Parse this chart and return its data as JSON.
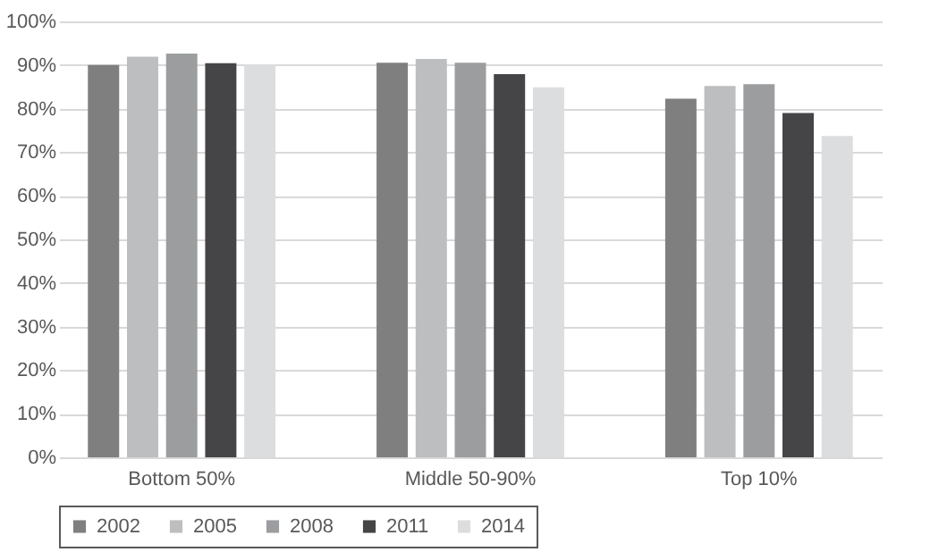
{
  "chart_data": {
    "type": "bar",
    "categories": [
      "Bottom 50%",
      "Middle 50-90%",
      "Top 10%"
    ],
    "series": [
      {
        "name": "2002",
        "color": "#7f7f7f",
        "values": [
          90,
          90.5,
          82.3
        ]
      },
      {
        "name": "2005",
        "color": "#bdbebf",
        "values": [
          91.9,
          91.4,
          85.2
        ]
      },
      {
        "name": "2008",
        "color": "#9b9d9f",
        "values": [
          92.6,
          90.5,
          85.6
        ]
      },
      {
        "name": "2011",
        "color": "#454547",
        "values": [
          90.4,
          87.9,
          79
        ]
      },
      {
        "name": "2014",
        "color": "#dcdddf",
        "values": [
          90.1,
          84.9,
          73.7
        ]
      }
    ],
    "ylim": [
      0,
      100
    ],
    "yticks": [
      {
        "value": 0,
        "label": "0%"
      },
      {
        "value": 10,
        "label": "10%"
      },
      {
        "value": 20,
        "label": "20%"
      },
      {
        "value": 30,
        "label": "30%"
      },
      {
        "value": 40,
        "label": "40%"
      },
      {
        "value": 50,
        "label": "50%"
      },
      {
        "value": 60,
        "label": "60%"
      },
      {
        "value": 70,
        "label": "70%"
      },
      {
        "value": 80,
        "label": "80%"
      },
      {
        "value": 90,
        "label": "90%"
      },
      {
        "value": 100,
        "label": "100%"
      }
    ],
    "grid": "y",
    "legend": "bottom"
  }
}
